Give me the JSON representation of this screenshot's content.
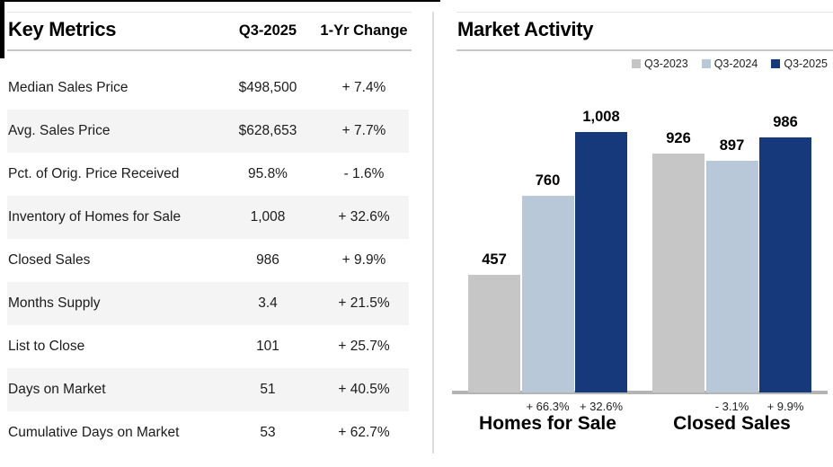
{
  "key_metrics": {
    "title": "Key Metrics",
    "columns": {
      "value": "Q3-2025",
      "change": "1-Yr Change"
    },
    "rows": [
      {
        "label": "Median Sales Price",
        "value": "$498,500",
        "change": "+ 7.4%"
      },
      {
        "label": "Avg. Sales Price",
        "value": "$628,653",
        "change": "+ 7.7%"
      },
      {
        "label": "Pct. of Orig. Price Received",
        "value": "95.8%",
        "change": "- 1.6%"
      },
      {
        "label": "Inventory of Homes for Sale",
        "value": "1,008",
        "change": "+ 32.6%"
      },
      {
        "label": "Closed Sales",
        "value": "986",
        "change": "+ 9.9%"
      },
      {
        "label": "Months Supply",
        "value": "3.4",
        "change": "+ 21.5%"
      },
      {
        "label": "List to Close",
        "value": "101",
        "change": "+ 25.7%"
      },
      {
        "label": "Days on Market",
        "value": "51",
        "change": "+ 40.5%"
      },
      {
        "label": "Cumulative Days on Market",
        "value": "53",
        "change": "+ 62.7%"
      }
    ]
  },
  "market_activity": {
    "title": "Market Activity"
  },
  "chart_data": {
    "type": "bar",
    "title": "Market Activity",
    "categories": [
      "Homes for Sale",
      "Closed Sales"
    ],
    "series": [
      {
        "name": "Q3-2023",
        "color": "#c6c6c6",
        "values": [
          457,
          926
        ],
        "labels": [
          "457",
          "926"
        ]
      },
      {
        "name": "Q3-2024",
        "color": "#b8c8d8",
        "values": [
          760,
          897
        ],
        "labels": [
          "760",
          "897"
        ],
        "pct_change": [
          "+ 66.3%",
          "- 3.1%"
        ]
      },
      {
        "name": "Q3-2025",
        "color": "#16397b",
        "values": [
          1008,
          986
        ],
        "labels": [
          "1,008",
          "986"
        ],
        "pct_change": [
          "+ 32.6%",
          "+ 9.9%"
        ]
      }
    ],
    "xlabel": "",
    "ylabel": "",
    "ylim": [
      0,
      1050
    ],
    "grid": false,
    "y_axis_labels_visible": false,
    "legend_position": "top-right"
  },
  "colors": {
    "alt_row_bg": "#f4f4f4",
    "axis_line": "#b4b4b4",
    "page_border": "#000000"
  }
}
